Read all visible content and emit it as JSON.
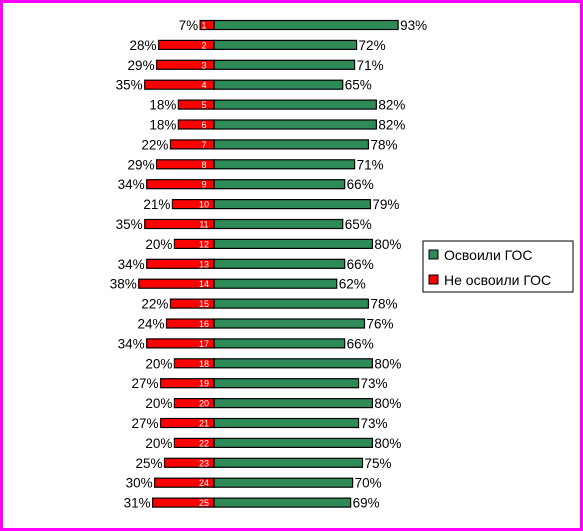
{
  "colors": {
    "frame": "#ff00ff",
    "series_1": "#2e8b57",
    "series_2": "#ff0000",
    "bar_outline": "#000000",
    "category_label": "#ffffff"
  },
  "chart_data": {
    "type": "bar",
    "orientation": "horizontal",
    "stacked": "diverging",
    "title": "",
    "xlabel": "",
    "ylabel": "",
    "categories": [
      "1",
      "2",
      "3",
      "4",
      "5",
      "6",
      "7",
      "8",
      "9",
      "10",
      "11",
      "12",
      "13",
      "14",
      "15",
      "16",
      "17",
      "18",
      "19",
      "20",
      "21",
      "22",
      "23",
      "24",
      "25"
    ],
    "series": [
      {
        "name": "Освоили ГОС",
        "color": "#2e8b57",
        "values": [
          93,
          72,
          71,
          65,
          82,
          82,
          78,
          71,
          66,
          79,
          65,
          80,
          66,
          62,
          78,
          76,
          66,
          80,
          73,
          80,
          73,
          80,
          75,
          70,
          69
        ]
      },
      {
        "name": "Не освоили ГОС",
        "color": "#ff0000",
        "values": [
          7,
          28,
          29,
          35,
          18,
          18,
          22,
          29,
          34,
          21,
          35,
          20,
          34,
          38,
          22,
          24,
          34,
          20,
          27,
          20,
          27,
          20,
          25,
          30,
          31
        ]
      }
    ],
    "value_format": "{v}%",
    "legend": "right",
    "grid": false,
    "axes_visible": false
  }
}
